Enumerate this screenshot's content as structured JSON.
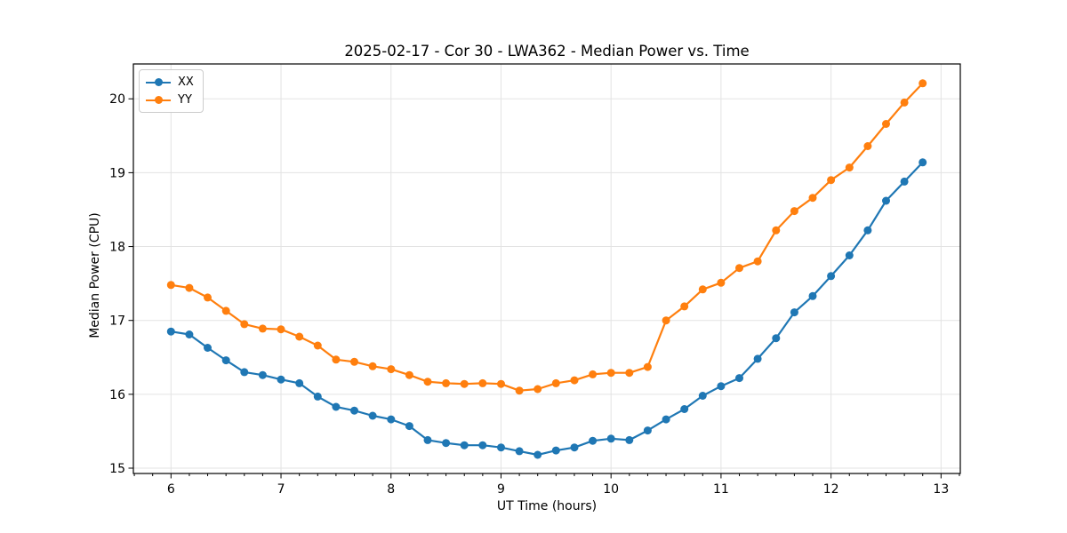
{
  "chart_data": {
    "type": "line",
    "title": "2025-02-17 - Cor 30 - LWA362 - Median Power vs. Time",
    "xlabel": "UT Time (hours)",
    "ylabel": "Median Power (CPU)",
    "xlim": [
      5.658,
      13.175
    ],
    "ylim": [
      14.928,
      20.472
    ],
    "xticks": [
      6,
      7,
      8,
      9,
      10,
      11,
      12,
      13
    ],
    "yticks": [
      15,
      16,
      17,
      18,
      19,
      20
    ],
    "x_minor_step_minutes": 10,
    "grid": true,
    "legend": {
      "position": "upper left"
    },
    "x": [
      6.0,
      6.1667,
      6.3333,
      6.5,
      6.6667,
      6.8333,
      7.0,
      7.1667,
      7.3333,
      7.5,
      7.6667,
      7.8333,
      8.0,
      8.1667,
      8.3333,
      8.5,
      8.6667,
      8.8333,
      9.0,
      9.1667,
      9.3333,
      9.5,
      9.6667,
      9.8333,
      10.0,
      10.1667,
      10.3333,
      10.5,
      10.6667,
      10.8333,
      11.0,
      11.1667,
      11.3333,
      11.5,
      11.6667,
      11.8333,
      12.0,
      12.1667,
      12.3333,
      12.5,
      12.6667,
      12.8333
    ],
    "series": [
      {
        "name": "XX",
        "color": "#1f77b4",
        "marker": "circle",
        "values": [
          16.85,
          16.81,
          16.63,
          16.46,
          16.3,
          16.26,
          16.2,
          16.15,
          15.97,
          15.83,
          15.78,
          15.71,
          15.66,
          15.57,
          15.38,
          15.34,
          15.31,
          15.31,
          15.28,
          15.23,
          15.18,
          15.24,
          15.28,
          15.37,
          15.4,
          15.38,
          15.51,
          15.66,
          15.8,
          15.98,
          16.11,
          16.22,
          16.48,
          16.76,
          17.11,
          17.33,
          17.6,
          17.88,
          18.22,
          18.62,
          18.88,
          19.14
        ]
      },
      {
        "name": "YY",
        "color": "#ff7f0e",
        "marker": "circle",
        "values": [
          17.48,
          17.44,
          17.31,
          17.13,
          16.95,
          16.89,
          16.88,
          16.78,
          16.66,
          16.47,
          16.44,
          16.38,
          16.34,
          16.26,
          16.17,
          16.15,
          16.14,
          16.15,
          16.14,
          16.05,
          16.07,
          16.15,
          16.19,
          16.27,
          16.29,
          16.29,
          16.37,
          17.0,
          17.19,
          17.42,
          17.51,
          17.71,
          17.8,
          18.22,
          18.48,
          18.66,
          18.9,
          19.07,
          19.36,
          19.66,
          19.95,
          20.21
        ]
      }
    ]
  }
}
